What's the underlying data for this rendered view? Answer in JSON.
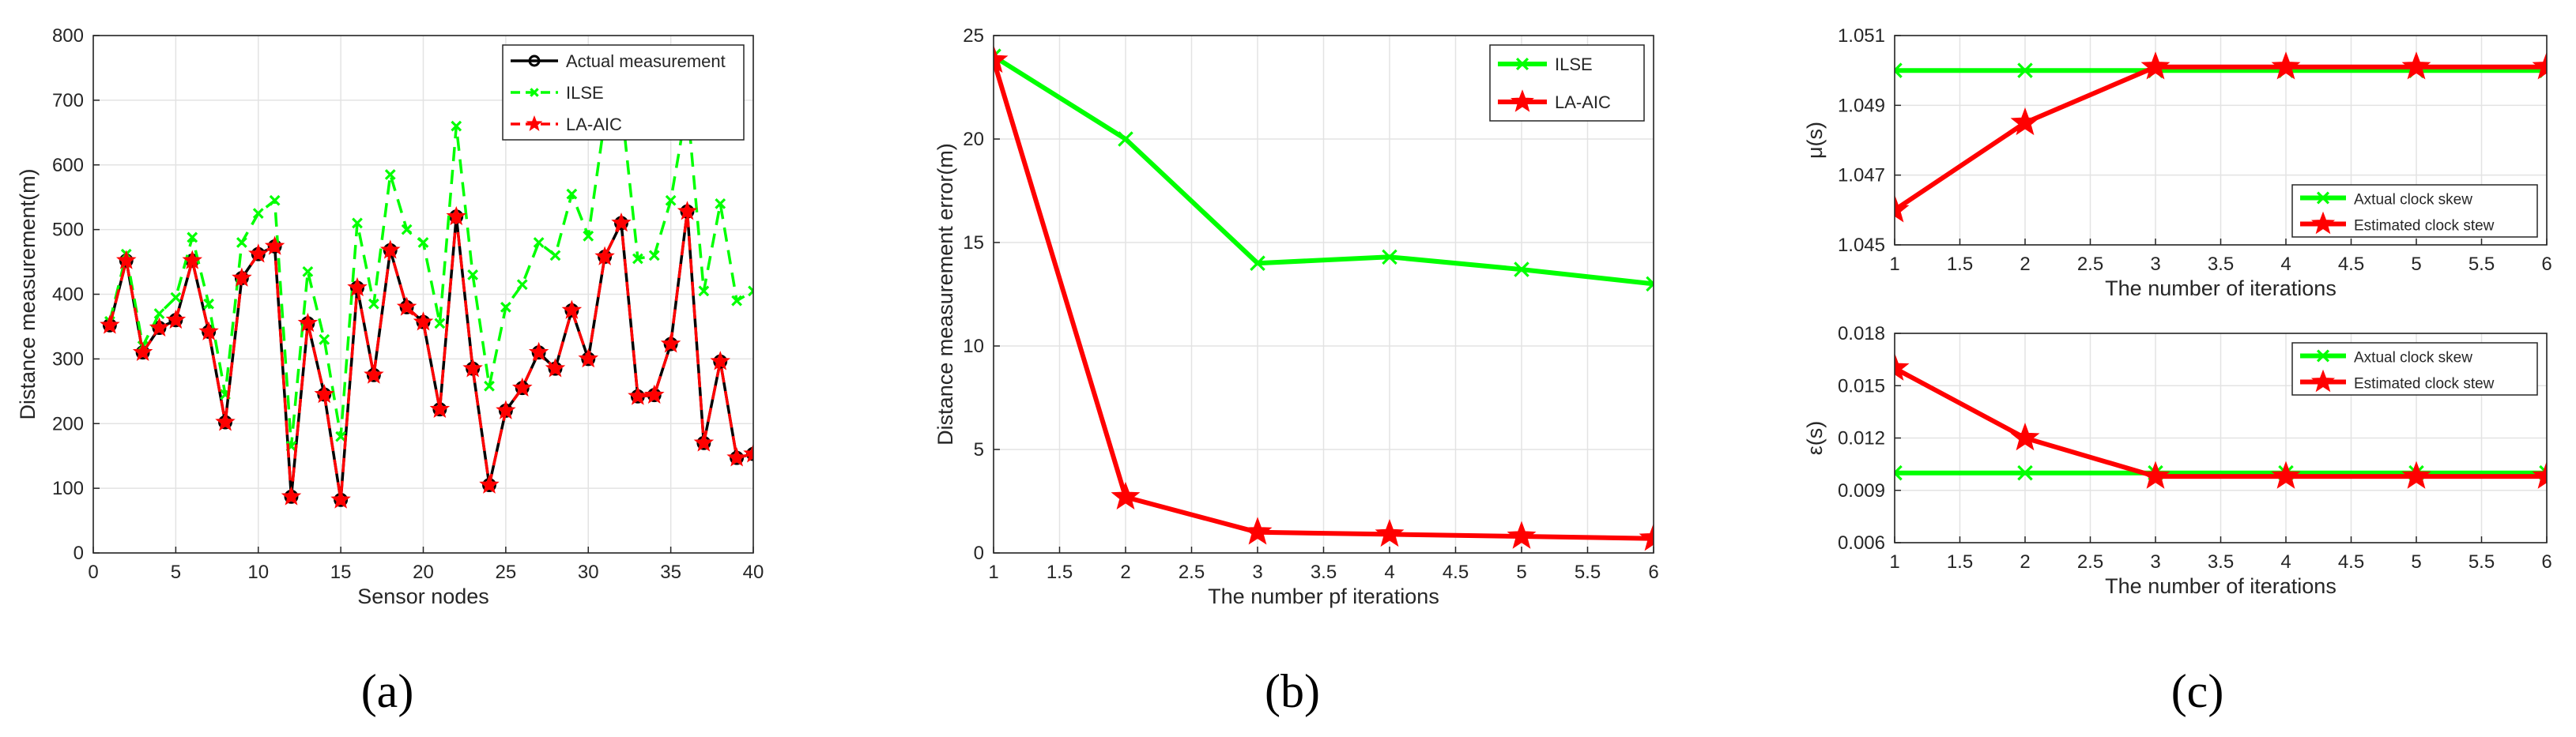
{
  "colors": {
    "black": "#000000",
    "green": "#00ff00",
    "red": "#ff0000",
    "grid": "#e3e3e3",
    "axis": "#262626"
  },
  "panel_labels": [
    "(a)",
    "(b)",
    "(c)"
  ],
  "chart_data": [
    {
      "id": "a",
      "type": "line",
      "title": "",
      "xlabel": "Sensor nodes",
      "ylabel": "Distance measurement(m)",
      "xlim": [
        0,
        40
      ],
      "ylim": [
        0,
        800
      ],
      "xticks": [
        0,
        5,
        10,
        15,
        20,
        25,
        30,
        35,
        40
      ],
      "yticks": [
        0,
        100,
        200,
        300,
        400,
        500,
        600,
        700,
        800
      ],
      "grid": true,
      "legend_position": "top-right",
      "x": [
        1,
        2,
        3,
        4,
        5,
        6,
        7,
        8,
        9,
        10,
        11,
        12,
        13,
        14,
        15,
        16,
        17,
        18,
        19,
        20,
        21,
        22,
        23,
        24,
        25,
        26,
        27,
        28,
        29,
        30,
        31,
        32,
        33,
        34,
        35,
        36,
        37,
        38,
        39,
        40
      ],
      "series": [
        {
          "name": "Actual measurement",
          "color": "#000000",
          "dash": "solid",
          "marker": "circle",
          "values": [
            352,
            452,
            310,
            348,
            360,
            452,
            342,
            202,
            425,
            462,
            474,
            87,
            355,
            245,
            82,
            410,
            275,
            468,
            380,
            357,
            222,
            520,
            285,
            105,
            220,
            255,
            310,
            285,
            375,
            300,
            458,
            510,
            242,
            244,
            323,
            528,
            170,
            296,
            147,
            153
          ]
        },
        {
          "name": "ILSE",
          "color": "#00ff00",
          "dash": "dashed",
          "marker": "x",
          "values": [
            358,
            462,
            320,
            370,
            395,
            488,
            385,
            245,
            480,
            525,
            545,
            165,
            435,
            330,
            180,
            510,
            385,
            585,
            500,
            480,
            355,
            660,
            430,
            258,
            380,
            415,
            480,
            460,
            555,
            490,
            670,
            695,
            455,
            460,
            545,
            695,
            405,
            540,
            390,
            405
          ]
        },
        {
          "name": "LA-AIC",
          "color": "#ff0000",
          "dash": "dashed",
          "marker": "star",
          "values": [
            352,
            452,
            310,
            348,
            360,
            452,
            342,
            202,
            425,
            462,
            474,
            87,
            355,
            245,
            82,
            410,
            275,
            468,
            380,
            357,
            222,
            520,
            285,
            105,
            220,
            255,
            310,
            285,
            375,
            300,
            458,
            510,
            242,
            244,
            323,
            528,
            170,
            296,
            147,
            153
          ]
        }
      ]
    },
    {
      "id": "b",
      "type": "line",
      "title": "",
      "xlabel": "The number pf iterations",
      "ylabel": "Distance measurement error(m)",
      "xlim": [
        1,
        6
      ],
      "ylim": [
        0,
        25
      ],
      "xticks": [
        1,
        1.5,
        2,
        2.5,
        3,
        3.5,
        4,
        4.5,
        5,
        5.5,
        6
      ],
      "yticks": [
        0,
        5,
        10,
        15,
        20,
        25
      ],
      "grid": true,
      "legend_position": "top-right",
      "x": [
        1,
        2,
        3,
        4,
        5,
        6
      ],
      "series": [
        {
          "name": "ILSE",
          "color": "#00ff00",
          "dash": "solid",
          "marker": "x",
          "values": [
            24.0,
            20.0,
            14.0,
            14.3,
            13.7,
            13.0
          ]
        },
        {
          "name": "LA-AIC",
          "color": "#ff0000",
          "dash": "solid",
          "marker": "star",
          "values": [
            23.8,
            2.7,
            1.0,
            0.9,
            0.8,
            0.7
          ]
        }
      ]
    },
    {
      "id": "c-top",
      "type": "line",
      "title": "",
      "xlabel": "The number of iterations",
      "ylabel": "μ(s)",
      "xlim": [
        1,
        6
      ],
      "ylim": [
        1.045,
        1.051
      ],
      "xticks": [
        1,
        1.5,
        2,
        2.5,
        3,
        3.5,
        4,
        4.5,
        5,
        5.5,
        6
      ],
      "yticks": [
        1.045,
        1.047,
        1.049,
        1.051
      ],
      "grid": true,
      "legend_position": "bottom-right",
      "x": [
        1,
        2,
        3,
        4,
        5,
        6
      ],
      "series": [
        {
          "name": "Axtual clock skew",
          "color": "#00ff00",
          "dash": "solid",
          "marker": "x",
          "values": [
            1.05,
            1.05,
            1.05,
            1.05,
            1.05,
            1.05
          ]
        },
        {
          "name": "Estimated clock stew",
          "color": "#ff0000",
          "dash": "solid",
          "marker": "star",
          "values": [
            1.046,
            1.0485,
            1.0501,
            1.0501,
            1.0501,
            1.0501
          ]
        }
      ]
    },
    {
      "id": "c-bottom",
      "type": "line",
      "title": "",
      "xlabel": "The number of iterations",
      "ylabel": "ε(s)",
      "xlim": [
        1,
        6
      ],
      "ylim": [
        0.006,
        0.018
      ],
      "xticks": [
        1,
        1.5,
        2,
        2.5,
        3,
        3.5,
        4,
        4.5,
        5,
        5.5,
        6
      ],
      "yticks": [
        0.006,
        0.009,
        0.012,
        0.015,
        0.018
      ],
      "grid": true,
      "legend_position": "top-right",
      "x": [
        1,
        2,
        3,
        4,
        5,
        6
      ],
      "series": [
        {
          "name": "Axtual clock skew",
          "color": "#00ff00",
          "dash": "solid",
          "marker": "x",
          "values": [
            0.01,
            0.01,
            0.01,
            0.01,
            0.01,
            0.01
          ]
        },
        {
          "name": "Estimated clock stew",
          "color": "#ff0000",
          "dash": "solid",
          "marker": "star",
          "values": [
            0.016,
            0.012,
            0.0098,
            0.0098,
            0.0098,
            0.0098
          ]
        }
      ]
    }
  ]
}
